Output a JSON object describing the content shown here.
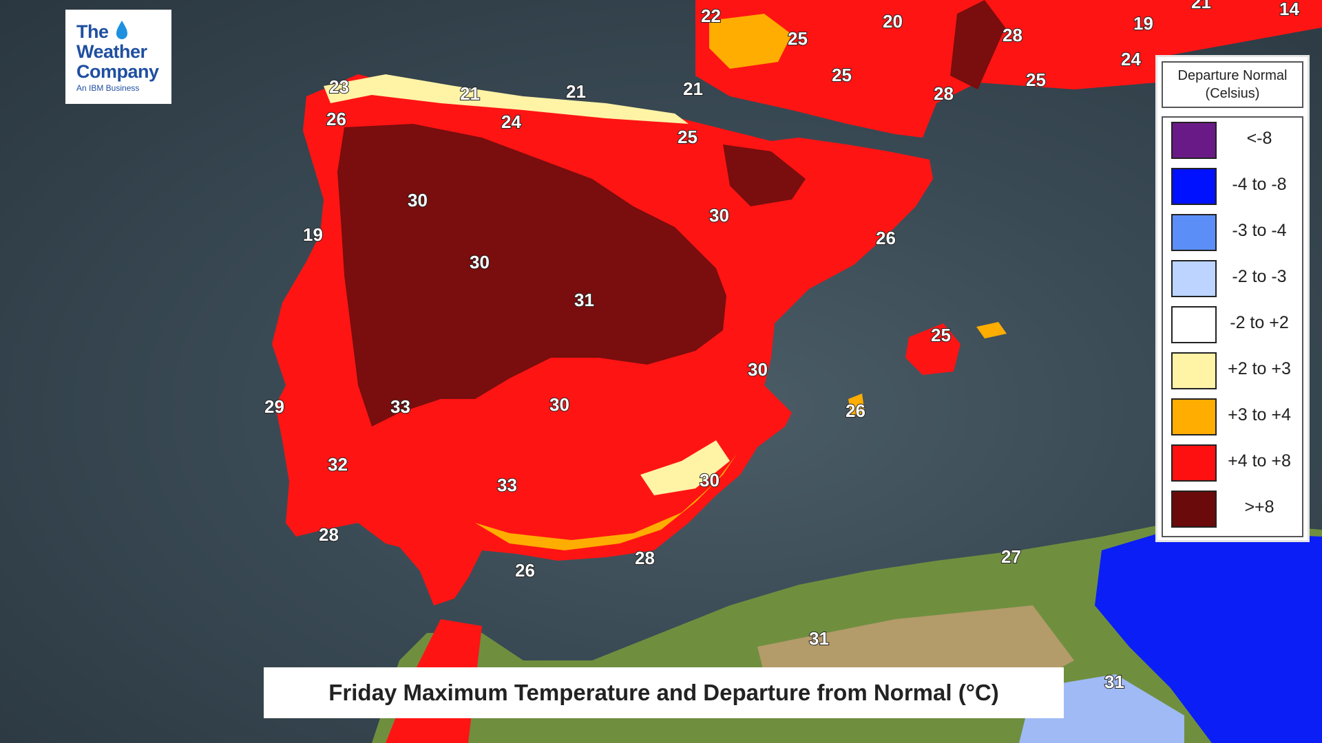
{
  "logo": {
    "line1": "The",
    "line2": "Weather",
    "line3": "Company",
    "tagline": "An IBM Business"
  },
  "legend": {
    "title": "Departure Normal (Celsius)",
    "items": [
      {
        "label": "<-8",
        "color": "#6a1a86"
      },
      {
        "label": "-4 to -8",
        "color": "#0011ff"
      },
      {
        "label": "-3 to -4",
        "color": "#5b8ff7"
      },
      {
        "label": "-2 to -3",
        "color": "#bcd4ff"
      },
      {
        "label": "-2 to +2",
        "color": "#ffffff"
      },
      {
        "label": "+2 to +3",
        "color": "#fff3a6"
      },
      {
        "label": "+3 to +4",
        "color": "#ffad00"
      },
      {
        "label": "+4 to +8",
        "color": "#ff1010"
      },
      {
        "label": ">+8",
        "color": "#6b0a0a"
      }
    ]
  },
  "caption": "Friday Maximum Temperature and Departure from Normal (°C)",
  "city_temperatures": [
    "22",
    "25",
    "20",
    "28",
    "19",
    "24",
    "21",
    "14",
    "25",
    "28",
    "25",
    "23",
    "21",
    "21",
    "21",
    "26",
    "24",
    "25",
    "30",
    "30",
    "26",
    "19",
    "30",
    "31",
    "25",
    "30",
    "29",
    "33",
    "30",
    "26",
    "32",
    "33",
    "30",
    "28",
    "28",
    "26",
    "27",
    "31",
    "31"
  ]
}
